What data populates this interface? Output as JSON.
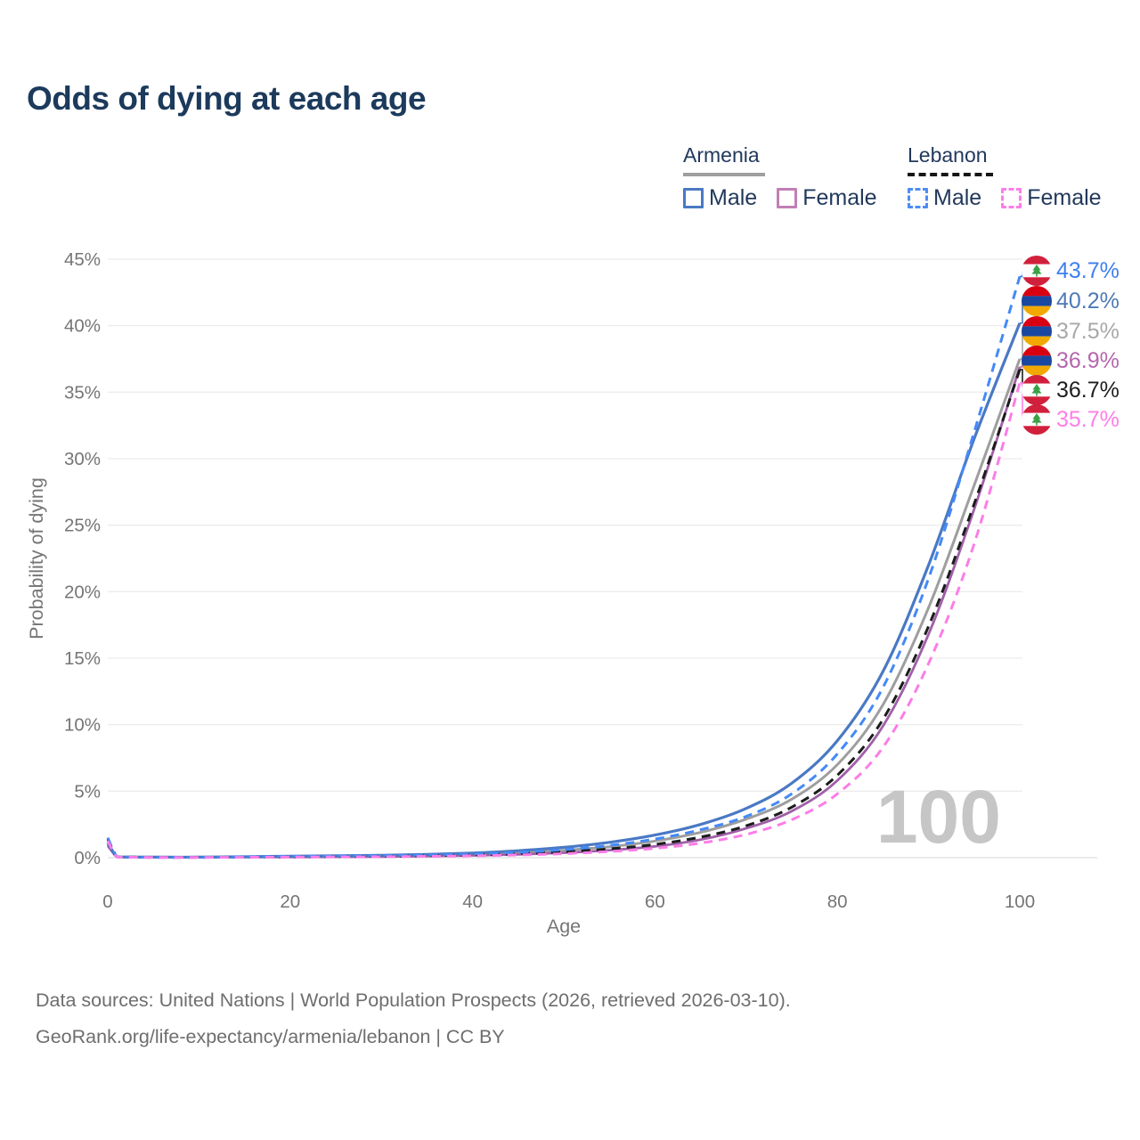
{
  "title": "Odds of dying at each age",
  "watermark_age": "100",
  "legend": {
    "armenia": {
      "title": "Armenia",
      "male": "Male",
      "female": "Female"
    },
    "lebanon": {
      "title": "Lebanon",
      "male": "Male",
      "female": "Female"
    }
  },
  "footer": {
    "line1": "Data sources: United Nations | World Population Prospects (2026, retrieved 2026-03-10).",
    "line2": "GeoRank.org/life-expectancy/armenia/lebanon | CC BY"
  },
  "colors": {
    "title_text": "#1c3a5c",
    "legend_text": "#22395c",
    "axis_text": "#757575",
    "gridline": "#ececec",
    "baseline": "#dedede",
    "watermark": "#c6c6c6",
    "armenia_underline": "#9e9e9e",
    "lebanon_underline": "#161616",
    "armenia_male": "#4a79c4",
    "armenia_female": "#a05fa8",
    "armenia_both": "#9e9e9e",
    "lebanon_male": "#4489f7",
    "lebanon_female": "#fb7de7",
    "lebanon_both": "#1c1c1c"
  },
  "chart_data": {
    "type": "line",
    "title": "Odds of dying at each age",
    "xlabel": "Age",
    "ylabel": "Probability of dying",
    "xlim": [
      0,
      100
    ],
    "ylim": [
      0,
      45
    ],
    "x_ticks": [
      0,
      20,
      40,
      60,
      80,
      100
    ],
    "y_ticks_percent": [
      0,
      5,
      10,
      15,
      20,
      25,
      30,
      35,
      40,
      45
    ],
    "grid": "horizontal-only",
    "legend_position": "top-right",
    "x": [
      0,
      1,
      2,
      5,
      10,
      15,
      20,
      25,
      30,
      35,
      40,
      45,
      50,
      55,
      60,
      65,
      70,
      75,
      80,
      85,
      90,
      95,
      100
    ],
    "series": [
      {
        "name": "Armenia (both sexes)",
        "id": "armenia-both",
        "country": "Armenia",
        "sex": "both",
        "color": "#9e9e9e",
        "dash": false,
        "width": 3,
        "values": [
          1.0,
          0.08,
          0.05,
          0.04,
          0.04,
          0.06,
          0.08,
          0.1,
          0.13,
          0.18,
          0.26,
          0.38,
          0.55,
          0.82,
          1.25,
          1.9,
          2.9,
          4.4,
          7.0,
          11.5,
          18.8,
          28.0,
          37.5
        ]
      },
      {
        "name": "Armenia Female",
        "id": "armenia-female",
        "country": "Armenia",
        "sex": "female",
        "color": "#a05fa8",
        "dash": false,
        "width": 2.8,
        "values": [
          0.9,
          0.07,
          0.04,
          0.03,
          0.03,
          0.04,
          0.05,
          0.06,
          0.08,
          0.12,
          0.17,
          0.25,
          0.37,
          0.56,
          0.85,
          1.35,
          2.2,
          3.5,
          5.8,
          9.9,
          16.8,
          26.2,
          36.9
        ]
      },
      {
        "name": "Armenia Male",
        "id": "armenia-male",
        "country": "Armenia",
        "sex": "male",
        "color": "#4a79c4",
        "dash": false,
        "width": 3.2,
        "values": [
          1.1,
          0.09,
          0.05,
          0.04,
          0.04,
          0.07,
          0.11,
          0.14,
          0.18,
          0.25,
          0.35,
          0.52,
          0.78,
          1.15,
          1.7,
          2.5,
          3.7,
          5.6,
          8.8,
          14.0,
          22.0,
          31.5,
          40.2
        ]
      },
      {
        "name": "Lebanon (both sexes)",
        "id": "lebanon-both",
        "country": "Lebanon",
        "sex": "both",
        "color": "#1c1c1c",
        "dash": true,
        "width": 3,
        "values": [
          1.4,
          0.09,
          0.05,
          0.03,
          0.03,
          0.05,
          0.07,
          0.09,
          0.11,
          0.15,
          0.21,
          0.3,
          0.44,
          0.66,
          1.0,
          1.55,
          2.4,
          3.8,
          6.2,
          10.4,
          17.4,
          26.6,
          36.7
        ]
      },
      {
        "name": "Lebanon Male",
        "id": "lebanon-male",
        "country": "Lebanon",
        "sex": "male",
        "color": "#4489f7",
        "dash": true,
        "width": 3,
        "values": [
          1.5,
          0.1,
          0.05,
          0.03,
          0.03,
          0.06,
          0.1,
          0.12,
          0.15,
          0.2,
          0.28,
          0.4,
          0.6,
          0.92,
          1.4,
          2.1,
          3.1,
          4.8,
          7.8,
          12.8,
          21.0,
          32.0,
          43.7
        ]
      },
      {
        "name": "Lebanon Female",
        "id": "lebanon-female",
        "country": "Lebanon",
        "sex": "female",
        "color": "#fb7de7",
        "dash": true,
        "width": 3,
        "values": [
          1.25,
          0.08,
          0.04,
          0.02,
          0.02,
          0.03,
          0.05,
          0.06,
          0.07,
          0.1,
          0.14,
          0.2,
          0.3,
          0.46,
          0.7,
          1.1,
          1.75,
          2.85,
          4.8,
          8.3,
          14.6,
          23.6,
          35.7
        ]
      }
    ],
    "end_labels": [
      {
        "label": "43.7%",
        "end_value": 43.7,
        "series": "Lebanon Male",
        "flag": "lebanon",
        "color": "#3d7ff0"
      },
      {
        "label": "40.2%",
        "end_value": 40.2,
        "series": "Armenia Male",
        "flag": "armenia",
        "color": "#4e79b6"
      },
      {
        "label": "37.5%",
        "end_value": 37.5,
        "series": "Armenia (both sexes)",
        "flag": "armenia",
        "color": "#a8a8a8"
      },
      {
        "label": "36.9%",
        "end_value": 36.9,
        "series": "Armenia Female",
        "flag": "armenia",
        "color": "#b567ad"
      },
      {
        "label": "36.7%",
        "end_value": 36.7,
        "series": "Lebanon (both sexes)",
        "flag": "lebanon",
        "color": "#1f1f1f"
      },
      {
        "label": "35.7%",
        "end_value": 35.7,
        "series": "Lebanon Female",
        "flag": "lebanon",
        "color": "#ff7ee8"
      }
    ]
  }
}
